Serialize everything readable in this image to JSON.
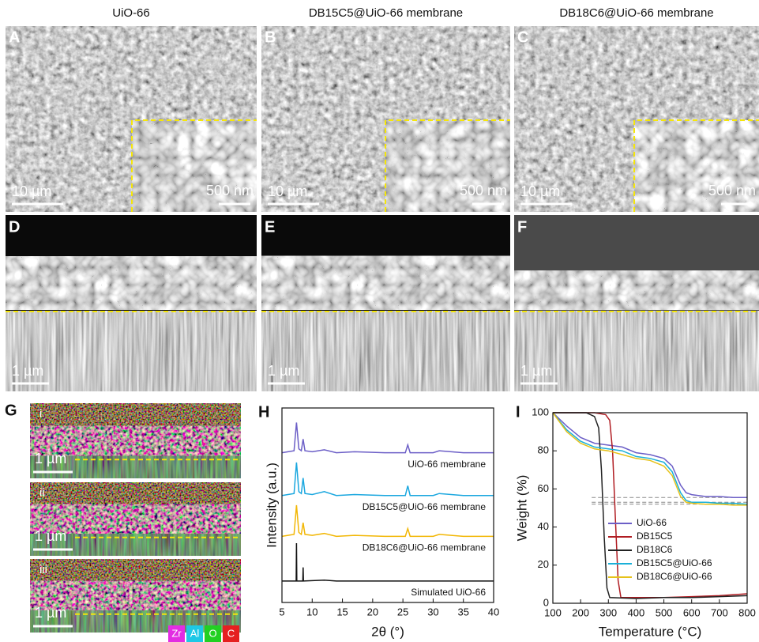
{
  "columns": [
    "UiO-66",
    "DB15C5@UiO-66  membrane",
    "DB18C6@UiO-66 membrane"
  ],
  "sem_panels": [
    {
      "letter": "A",
      "scale_bar": "10 µm",
      "inset_scale_bar": "500 nm"
    },
    {
      "letter": "B",
      "scale_bar": "10 µm",
      "inset_scale_bar": "500 nm"
    },
    {
      "letter": "C",
      "scale_bar": "10 µm",
      "inset_scale_bar": "500 nm"
    }
  ],
  "cross_panels": [
    {
      "letter": "D",
      "scale_bar": "1 µm"
    },
    {
      "letter": "E",
      "scale_bar": "1 µm"
    },
    {
      "letter": "F",
      "scale_bar": "1 µm"
    }
  ],
  "eds": {
    "letter": "G",
    "rows": [
      {
        "label": "i",
        "scale_bar": "1 µm"
      },
      {
        "label": "ii",
        "scale_bar": "1 µm"
      },
      {
        "label": "iii",
        "scale_bar": "1 µm"
      }
    ],
    "elements": [
      {
        "name": "Zr",
        "color": "#e22de2"
      },
      {
        "name": "Al",
        "color": "#1ec8e6"
      },
      {
        "name": "O",
        "color": "#22d022"
      },
      {
        "name": "C",
        "color": "#e52020"
      }
    ]
  },
  "chart_data": [
    {
      "type": "line",
      "label": "H",
      "x_label": "2θ (°)",
      "y_label": "Intensity (a.u.)",
      "xlim": [
        5,
        40
      ],
      "xticks": [
        5,
        10,
        15,
        20,
        25,
        30,
        35,
        40
      ],
      "ylim": [
        0,
        10
      ],
      "series": [
        {
          "name": "UiO-66 membrane",
          "color": "#6c5fc7",
          "x": [
            5,
            7,
            7.4,
            7.8,
            8.2,
            8.5,
            8.8,
            10,
            12,
            14,
            17,
            22,
            25.4,
            25.8,
            26.2,
            30,
            31,
            35,
            40
          ],
          "values": [
            7.7,
            7.8,
            9.25,
            7.9,
            7.8,
            8.4,
            7.8,
            7.75,
            7.85,
            7.7,
            7.75,
            7.7,
            7.7,
            8.1,
            7.7,
            7.7,
            7.8,
            7.7,
            7.7
          ]
        },
        {
          "name": "DB15C5@UiO-66 membrane",
          "color": "#1aa7df",
          "x": [
            5,
            7,
            7.4,
            7.8,
            8.2,
            8.5,
            8.8,
            10,
            12,
            14,
            17,
            22,
            25.4,
            25.8,
            26.2,
            30,
            31,
            35,
            40
          ],
          "values": [
            5.5,
            5.6,
            7.2,
            5.7,
            5.6,
            6.4,
            5.6,
            5.55,
            5.7,
            5.5,
            5.55,
            5.5,
            5.5,
            6.0,
            5.5,
            5.5,
            5.6,
            5.5,
            5.5
          ]
        },
        {
          "name": "DB18C6@UiO-66 membrane",
          "color": "#f2b705",
          "x": [
            5,
            7,
            7.4,
            7.8,
            8.2,
            8.5,
            8.8,
            10,
            12,
            14,
            17,
            22,
            25.4,
            25.8,
            26.2,
            30,
            31,
            35,
            40
          ],
          "values": [
            3.4,
            3.5,
            5.0,
            3.6,
            3.5,
            4.1,
            3.5,
            3.45,
            3.55,
            3.4,
            3.45,
            3.4,
            3.4,
            3.8,
            3.4,
            3.4,
            3.5,
            3.4,
            3.4
          ]
        },
        {
          "name": "Simulated UiO-66",
          "color": "#111111",
          "x": [
            5,
            7.35,
            7.4,
            7.45,
            8.45,
            8.5,
            8.55,
            12,
            14,
            40
          ],
          "values": [
            1.1,
            1.1,
            3.05,
            1.1,
            1.1,
            1.8,
            1.1,
            1.15,
            1.1,
            1.1
          ]
        }
      ]
    },
    {
      "type": "line",
      "label": "I",
      "x_label": "Temperature (°C)",
      "y_label": "Weight (%)",
      "xlim": [
        100,
        800
      ],
      "xticks": [
        100,
        200,
        300,
        400,
        500,
        600,
        700,
        800
      ],
      "ylim": [
        0,
        100
      ],
      "yticks": [
        0,
        20,
        40,
        60,
        80,
        100
      ],
      "reference_lines": [
        55.5,
        53,
        52
      ],
      "series": [
        {
          "name": "UiO-66",
          "color": "#6c5fc7",
          "x": [
            100,
            150,
            200,
            250,
            300,
            350,
            400,
            450,
            500,
            530,
            560,
            580,
            600,
            650,
            700,
            750,
            800
          ],
          "values": [
            100,
            93,
            87,
            84,
            83,
            82,
            79,
            78,
            76,
            72,
            62,
            58,
            57,
            56,
            56,
            55.5,
            55.5
          ]
        },
        {
          "name": "DB15C5",
          "color": "#b01c22",
          "x": [
            100,
            250,
            290,
            305,
            315,
            325,
            335,
            345,
            400,
            500,
            600,
            700,
            800
          ],
          "values": [
            100,
            100,
            99,
            96,
            80,
            45,
            12,
            3,
            3,
            3,
            3.5,
            4,
            5
          ]
        },
        {
          "name": "DB18C6",
          "color": "#222222",
          "x": [
            100,
            220,
            250,
            265,
            275,
            285,
            295,
            305,
            400,
            500,
            600,
            700,
            800
          ],
          "values": [
            100,
            100,
            98,
            92,
            70,
            35,
            8,
            3,
            2.5,
            3,
            3,
            3.5,
            4
          ]
        },
        {
          "name": "DB15C5@UiO-66",
          "color": "#1ab0d8",
          "x": [
            100,
            150,
            200,
            250,
            300,
            350,
            400,
            450,
            500,
            530,
            560,
            580,
            600,
            650,
            700,
            750,
            800
          ],
          "values": [
            100,
            91,
            85,
            82,
            81,
            80,
            77,
            76,
            74,
            69,
            58,
            54,
            53,
            53,
            52.5,
            52.5,
            52
          ]
        },
        {
          "name": "DB18C6@UiO-66",
          "color": "#e6c21a",
          "x": [
            100,
            150,
            200,
            250,
            300,
            350,
            400,
            450,
            500,
            530,
            560,
            580,
            600,
            650,
            700,
            750,
            800
          ],
          "values": [
            100,
            90,
            84,
            81,
            80,
            78,
            76,
            75,
            72,
            67,
            56,
            53,
            52.5,
            52,
            52,
            51.5,
            51.5
          ]
        }
      ]
    }
  ]
}
